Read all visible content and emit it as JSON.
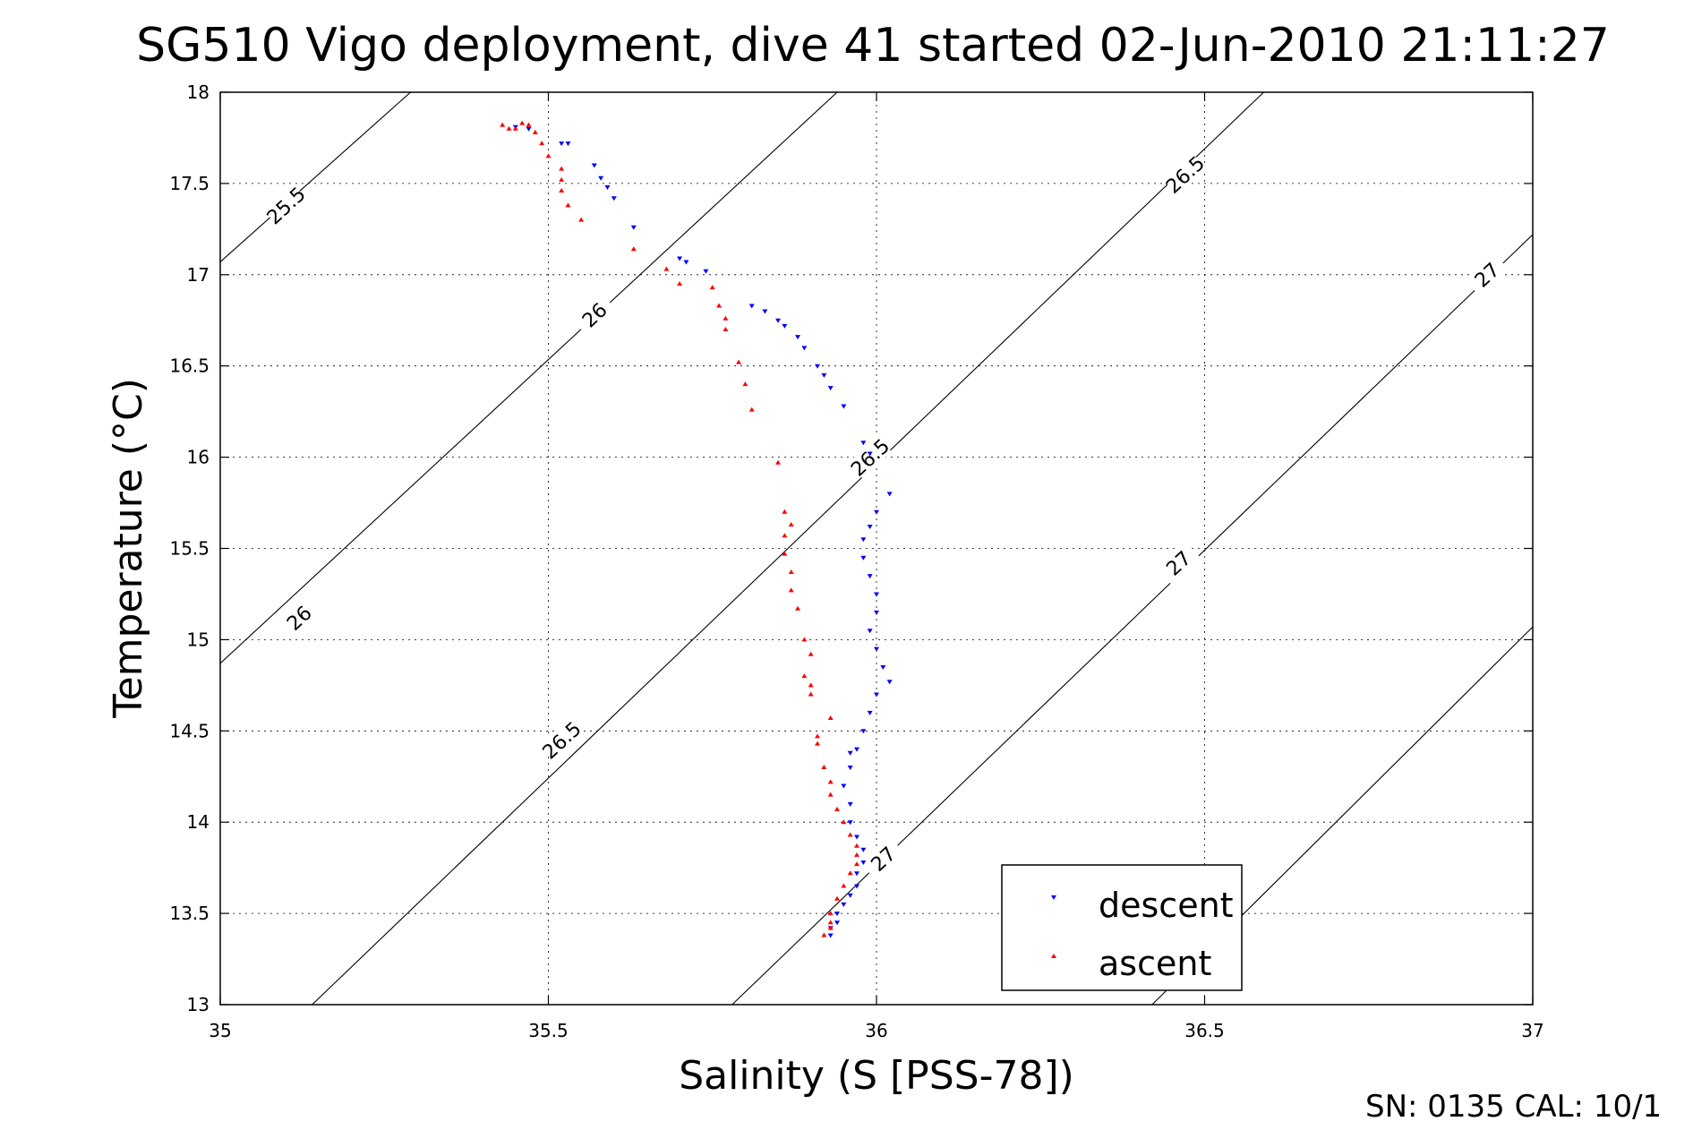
{
  "chart_data": {
    "type": "scatter",
    "title": "SG510 Vigo deployment, dive 41 started 02-Jun-2010 21:11:27",
    "xlabel": "Salinity (S [PSS-78])",
    "ylabel": "Temperature (°C)",
    "xlim": [
      35,
      37
    ],
    "ylim": [
      13,
      18
    ],
    "xticks": [
      35,
      35.5,
      36,
      36.5,
      37
    ],
    "xtick_labels": [
      "35",
      "35.5",
      "36",
      "36.5",
      "37"
    ],
    "yticks": [
      13,
      13.5,
      14,
      14.5,
      15,
      15.5,
      16,
      16.5,
      17,
      17.5,
      18
    ],
    "ytick_labels": [
      "13",
      "13.5",
      "14",
      "14.5",
      "15",
      "15.5",
      "16",
      "16.5",
      "17",
      "17.5",
      "18"
    ],
    "grid": true,
    "legend_position": "bottom-right",
    "footer": "SN: 0135  CAL: 10/1",
    "density_contours": [
      {
        "label": "25.5",
        "points": [
          [
            35.0,
            17.07
          ],
          [
            35.29,
            18.0
          ]
        ],
        "label_at": [
          35.1,
          17.38
        ]
      },
      {
        "label": "26",
        "points": [
          [
            35.0,
            14.87
          ],
          [
            35.94,
            18.0
          ]
        ],
        "label_at": [
          35.12,
          15.12
        ]
      },
      {
        "label": "26",
        "points": [],
        "label_at": [
          35.57,
          16.78
        ]
      },
      {
        "label": "26.5",
        "points": [
          [
            35.14,
            13.0
          ],
          [
            36.59,
            18.0
          ]
        ],
        "label_at": [
          35.52,
          14.45
        ]
      },
      {
        "label": "26.5",
        "points": [],
        "label_at": [
          35.99,
          16.0
        ]
      },
      {
        "label": "26.5",
        "points": [],
        "label_at": [
          36.47,
          17.55
        ]
      },
      {
        "label": "27",
        "points": [
          [
            35.78,
            13.0
          ],
          [
            37.0,
            17.22
          ]
        ],
        "label_at": [
          36.01,
          13.8
        ]
      },
      {
        "label": "27",
        "points": [],
        "label_at": [
          36.46,
          15.42
        ]
      },
      {
        "label": "27",
        "points": [],
        "label_at": [
          36.93,
          17.0
        ]
      },
      {
        "label": "",
        "points": [
          [
            36.42,
            13.0
          ],
          [
            37.0,
            15.07
          ]
        ],
        "label_at": null
      }
    ],
    "series": [
      {
        "name": "descent",
        "color": "#0000ff",
        "marker": "triangle-down",
        "points": [
          [
            35.45,
            17.81
          ],
          [
            35.47,
            17.8
          ],
          [
            35.52,
            17.72
          ],
          [
            35.53,
            17.72
          ],
          [
            35.57,
            17.6
          ],
          [
            35.58,
            17.53
          ],
          [
            35.59,
            17.48
          ],
          [
            35.6,
            17.42
          ],
          [
            35.63,
            17.26
          ],
          [
            35.7,
            17.09
          ],
          [
            35.71,
            17.07
          ],
          [
            35.74,
            17.02
          ],
          [
            35.81,
            16.83
          ],
          [
            35.83,
            16.8
          ],
          [
            35.85,
            16.75
          ],
          [
            35.86,
            16.72
          ],
          [
            35.88,
            16.66
          ],
          [
            35.89,
            16.6
          ],
          [
            35.91,
            16.5
          ],
          [
            35.92,
            16.45
          ],
          [
            35.93,
            16.38
          ],
          [
            35.95,
            16.28
          ],
          [
            35.98,
            16.08
          ],
          [
            35.99,
            16.02
          ],
          [
            36.02,
            15.8
          ],
          [
            36.0,
            15.7
          ],
          [
            35.99,
            15.62
          ],
          [
            35.98,
            15.55
          ],
          [
            35.98,
            15.45
          ],
          [
            35.99,
            15.35
          ],
          [
            36.0,
            15.25
          ],
          [
            36.0,
            15.15
          ],
          [
            35.99,
            15.05
          ],
          [
            36.0,
            14.95
          ],
          [
            36.01,
            14.85
          ],
          [
            36.02,
            14.77
          ],
          [
            36.0,
            14.7
          ],
          [
            35.99,
            14.6
          ],
          [
            35.98,
            14.5
          ],
          [
            35.97,
            14.4
          ],
          [
            35.96,
            14.38
          ],
          [
            35.96,
            14.3
          ],
          [
            35.95,
            14.2
          ],
          [
            35.96,
            14.1
          ],
          [
            35.96,
            14.0
          ],
          [
            35.97,
            13.92
          ],
          [
            35.98,
            13.85
          ],
          [
            35.98,
            13.78
          ],
          [
            35.97,
            13.72
          ],
          [
            35.97,
            13.65
          ],
          [
            35.96,
            13.6
          ],
          [
            35.95,
            13.55
          ],
          [
            35.94,
            13.5
          ],
          [
            35.94,
            13.45
          ],
          [
            35.93,
            13.42
          ],
          [
            35.93,
            13.38
          ]
        ]
      },
      {
        "name": "ascent",
        "color": "#ff0000",
        "marker": "triangle-up",
        "points": [
          [
            35.43,
            17.82
          ],
          [
            35.44,
            17.8
          ],
          [
            35.45,
            17.8
          ],
          [
            35.46,
            17.83
          ],
          [
            35.47,
            17.82
          ],
          [
            35.48,
            17.78
          ],
          [
            35.49,
            17.72
          ],
          [
            35.5,
            17.65
          ],
          [
            35.52,
            17.58
          ],
          [
            35.52,
            17.52
          ],
          [
            35.52,
            17.46
          ],
          [
            35.53,
            17.38
          ],
          [
            35.55,
            17.3
          ],
          [
            35.63,
            17.14
          ],
          [
            35.68,
            17.03
          ],
          [
            35.7,
            16.95
          ],
          [
            35.75,
            16.93
          ],
          [
            35.76,
            16.83
          ],
          [
            35.77,
            16.76
          ],
          [
            35.77,
            16.7
          ],
          [
            35.79,
            16.52
          ],
          [
            35.8,
            16.4
          ],
          [
            35.81,
            16.26
          ],
          [
            35.85,
            15.97
          ],
          [
            35.86,
            15.7
          ],
          [
            35.87,
            15.63
          ],
          [
            35.86,
            15.57
          ],
          [
            35.86,
            15.47
          ],
          [
            35.87,
            15.37
          ],
          [
            35.87,
            15.27
          ],
          [
            35.88,
            15.17
          ],
          [
            35.89,
            15.0
          ],
          [
            35.9,
            14.92
          ],
          [
            35.89,
            14.8
          ],
          [
            35.9,
            14.75
          ],
          [
            35.9,
            14.7
          ],
          [
            35.93,
            14.57
          ],
          [
            35.91,
            14.47
          ],
          [
            35.91,
            14.43
          ],
          [
            35.92,
            14.3
          ],
          [
            35.93,
            14.22
          ],
          [
            35.93,
            14.15
          ],
          [
            35.94,
            14.07
          ],
          [
            35.95,
            14.0
          ],
          [
            35.96,
            13.93
          ],
          [
            35.97,
            13.87
          ],
          [
            35.97,
            13.82
          ],
          [
            35.97,
            13.77
          ],
          [
            35.96,
            13.72
          ],
          [
            35.95,
            13.65
          ],
          [
            35.94,
            13.58
          ],
          [
            35.93,
            13.5
          ],
          [
            35.93,
            13.45
          ],
          [
            35.93,
            13.42
          ],
          [
            35.92,
            13.38
          ]
        ]
      }
    ]
  }
}
